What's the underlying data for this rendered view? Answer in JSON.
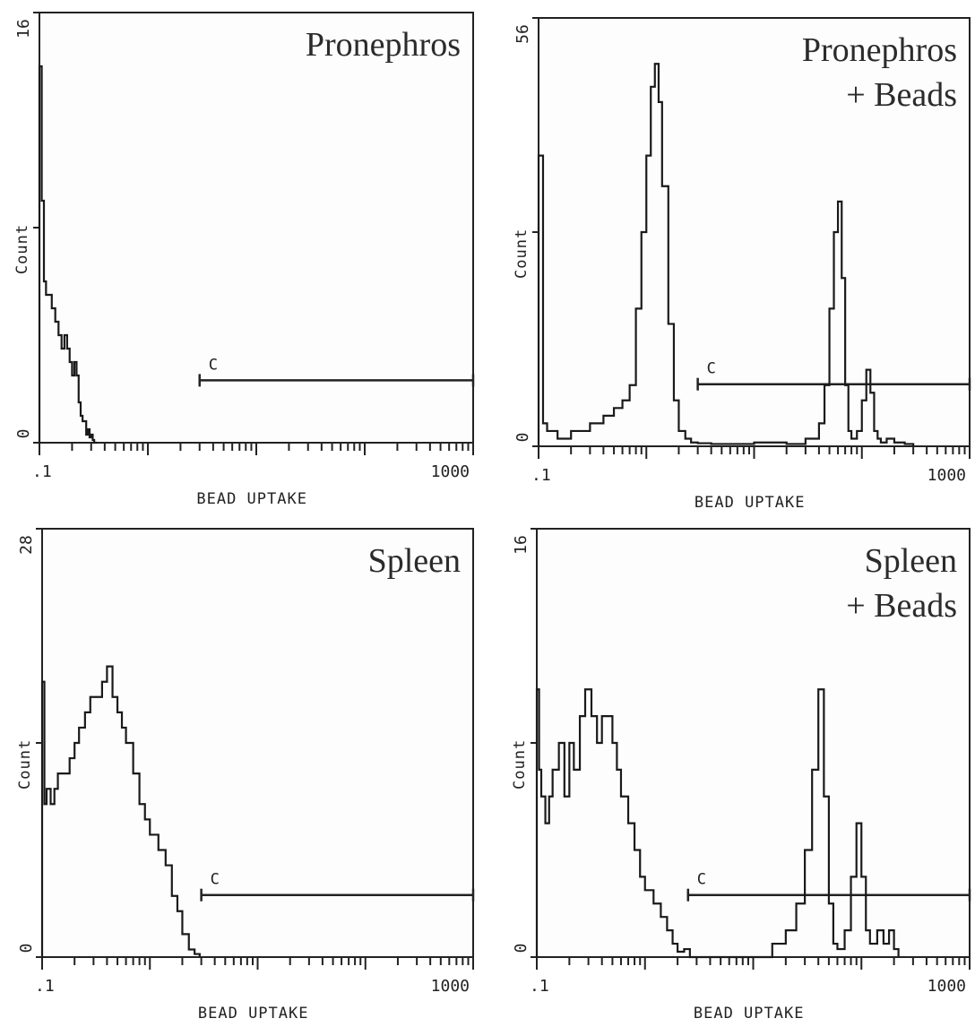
{
  "chart_data": [
    {
      "type": "histogram",
      "title_lines": [
        "Pronephros"
      ],
      "xlabel": "BEAD UPTAKE",
      "ylabel": "Count",
      "xscale": "log",
      "xlim": [
        0.1,
        1000
      ],
      "x_tick_labels": [
        ".1",
        "1000"
      ],
      "ylim": [
        0,
        16
      ],
      "y_tick_labels": [
        "0",
        "16"
      ],
      "gate": {
        "label": "C",
        "from": 3,
        "to": 1000
      },
      "series": [
        {
          "x": [
            0.1,
            0.105,
            0.11,
            0.115,
            0.12,
            0.13,
            0.14,
            0.15,
            0.16,
            0.17,
            0.18,
            0.19,
            0.2,
            0.21,
            0.22,
            0.23,
            0.24,
            0.25,
            0.26,
            0.27,
            0.28,
            0.29,
            0.3,
            0.31,
            0.32,
            0.34
          ],
          "values": [
            14,
            9,
            6,
            5.5,
            5.5,
            5,
            4.5,
            4,
            3.5,
            4,
            3.5,
            3,
            2.5,
            3,
            2.5,
            1.5,
            1,
            0.8,
            0.8,
            0.3,
            0.5,
            0.2,
            0.3,
            0.1,
            0,
            0
          ]
        }
      ]
    },
    {
      "type": "histogram",
      "title_lines": [
        "Pronephros",
        "+ Beads"
      ],
      "xlabel": "BEAD UPTAKE",
      "ylabel": "Count",
      "xscale": "log",
      "xlim": [
        0.1,
        1000
      ],
      "x_tick_labels": [
        ".1",
        "1000"
      ],
      "ylim": [
        0,
        56
      ],
      "y_tick_labels": [
        "0",
        "56"
      ],
      "gate": {
        "label": "C",
        "from": 3,
        "to": 1000
      },
      "series": [
        {
          "x": [
            0.1,
            0.11,
            0.12,
            0.15,
            0.2,
            0.3,
            0.4,
            0.5,
            0.6,
            0.7,
            0.8,
            0.9,
            1.0,
            1.1,
            1.2,
            1.3,
            1.4,
            1.6,
            1.8,
            2.0,
            2.3,
            2.6,
            3.0,
            4,
            6,
            10,
            20,
            30,
            40,
            45,
            50,
            55,
            60,
            65,
            70,
            75,
            80,
            90,
            100,
            110,
            120,
            130,
            140,
            150,
            170,
            200,
            250,
            300
          ],
          "values": [
            38,
            3,
            2,
            1,
            2,
            3,
            4,
            5,
            6,
            8,
            18,
            28,
            38,
            47,
            50,
            45,
            34,
            16,
            6,
            2,
            1,
            0.5,
            0.4,
            0.3,
            0.3,
            0.5,
            0.3,
            1,
            3,
            8,
            18,
            28,
            32,
            22,
            8,
            2,
            1,
            2,
            6,
            10,
            7,
            2,
            1,
            0.5,
            1,
            0.5,
            0.3,
            0
          ]
        }
      ]
    },
    {
      "type": "histogram",
      "title_lines": [
        "Spleen"
      ],
      "xlabel": "BEAD UPTAKE",
      "ylabel": "Count",
      "xscale": "log",
      "xlim": [
        0.1,
        1000
      ],
      "x_tick_labels": [
        ".1",
        "1000"
      ],
      "ylim": [
        0,
        28
      ],
      "y_tick_labels": [
        "0",
        "28"
      ],
      "gate": {
        "label": "C",
        "from": 3,
        "to": 1000
      },
      "series": [
        {
          "x": [
            0.1,
            0.105,
            0.11,
            0.12,
            0.13,
            0.14,
            0.16,
            0.18,
            0.2,
            0.22,
            0.25,
            0.28,
            0.32,
            0.36,
            0.4,
            0.45,
            0.5,
            0.55,
            0.6,
            0.7,
            0.8,
            0.9,
            1.0,
            1.2,
            1.4,
            1.6,
            1.8,
            2.0,
            2.3,
            2.6,
            2.9
          ],
          "values": [
            18,
            10,
            11,
            10,
            11,
            12,
            12,
            13,
            14,
            15,
            16,
            17,
            17,
            18,
            19,
            17,
            16,
            15,
            14,
            12,
            10,
            9,
            8,
            7,
            6,
            4,
            3,
            1.5,
            0.5,
            0.2,
            0
          ]
        }
      ]
    },
    {
      "type": "histogram",
      "title_lines": [
        "Spleen",
        "+ Beads"
      ],
      "xlabel": "BEAD UPTAKE",
      "ylabel": "Count",
      "xscale": "log",
      "xlim": [
        0.1,
        1000
      ],
      "x_tick_labels": [
        ".1",
        "1000"
      ],
      "ylim": [
        0,
        16
      ],
      "y_tick_labels": [
        "0",
        "16"
      ],
      "gate": {
        "label": "C",
        "from": 2.5,
        "to": 1000
      },
      "series": [
        {
          "x": [
            0.1,
            0.105,
            0.11,
            0.12,
            0.13,
            0.14,
            0.16,
            0.18,
            0.2,
            0.22,
            0.25,
            0.28,
            0.32,
            0.36,
            0.4,
            0.45,
            0.5,
            0.55,
            0.6,
            0.7,
            0.8,
            0.9,
            1.0,
            1.2,
            1.4,
            1.6,
            1.8,
            2.0,
            2.3,
            2.6,
            4,
            8,
            15,
            20,
            25,
            30,
            35,
            40,
            45,
            50,
            55,
            60,
            70,
            80,
            90,
            100,
            110,
            120,
            140,
            160,
            180,
            200,
            220
          ],
          "values": [
            10,
            7,
            6,
            5,
            6,
            7,
            8,
            6,
            8,
            7,
            9,
            10,
            9,
            8,
            9,
            9,
            8,
            7,
            6,
            5,
            4,
            3,
            2.5,
            2,
            1.5,
            1,
            0.5,
            0.2,
            0.3,
            0,
            0,
            0,
            0.5,
            1,
            2,
            4,
            7,
            10,
            6,
            2,
            0.5,
            0.3,
            1,
            3,
            5,
            3,
            1,
            0.5,
            1,
            0.5,
            1,
            0.3,
            0
          ]
        }
      ]
    }
  ]
}
